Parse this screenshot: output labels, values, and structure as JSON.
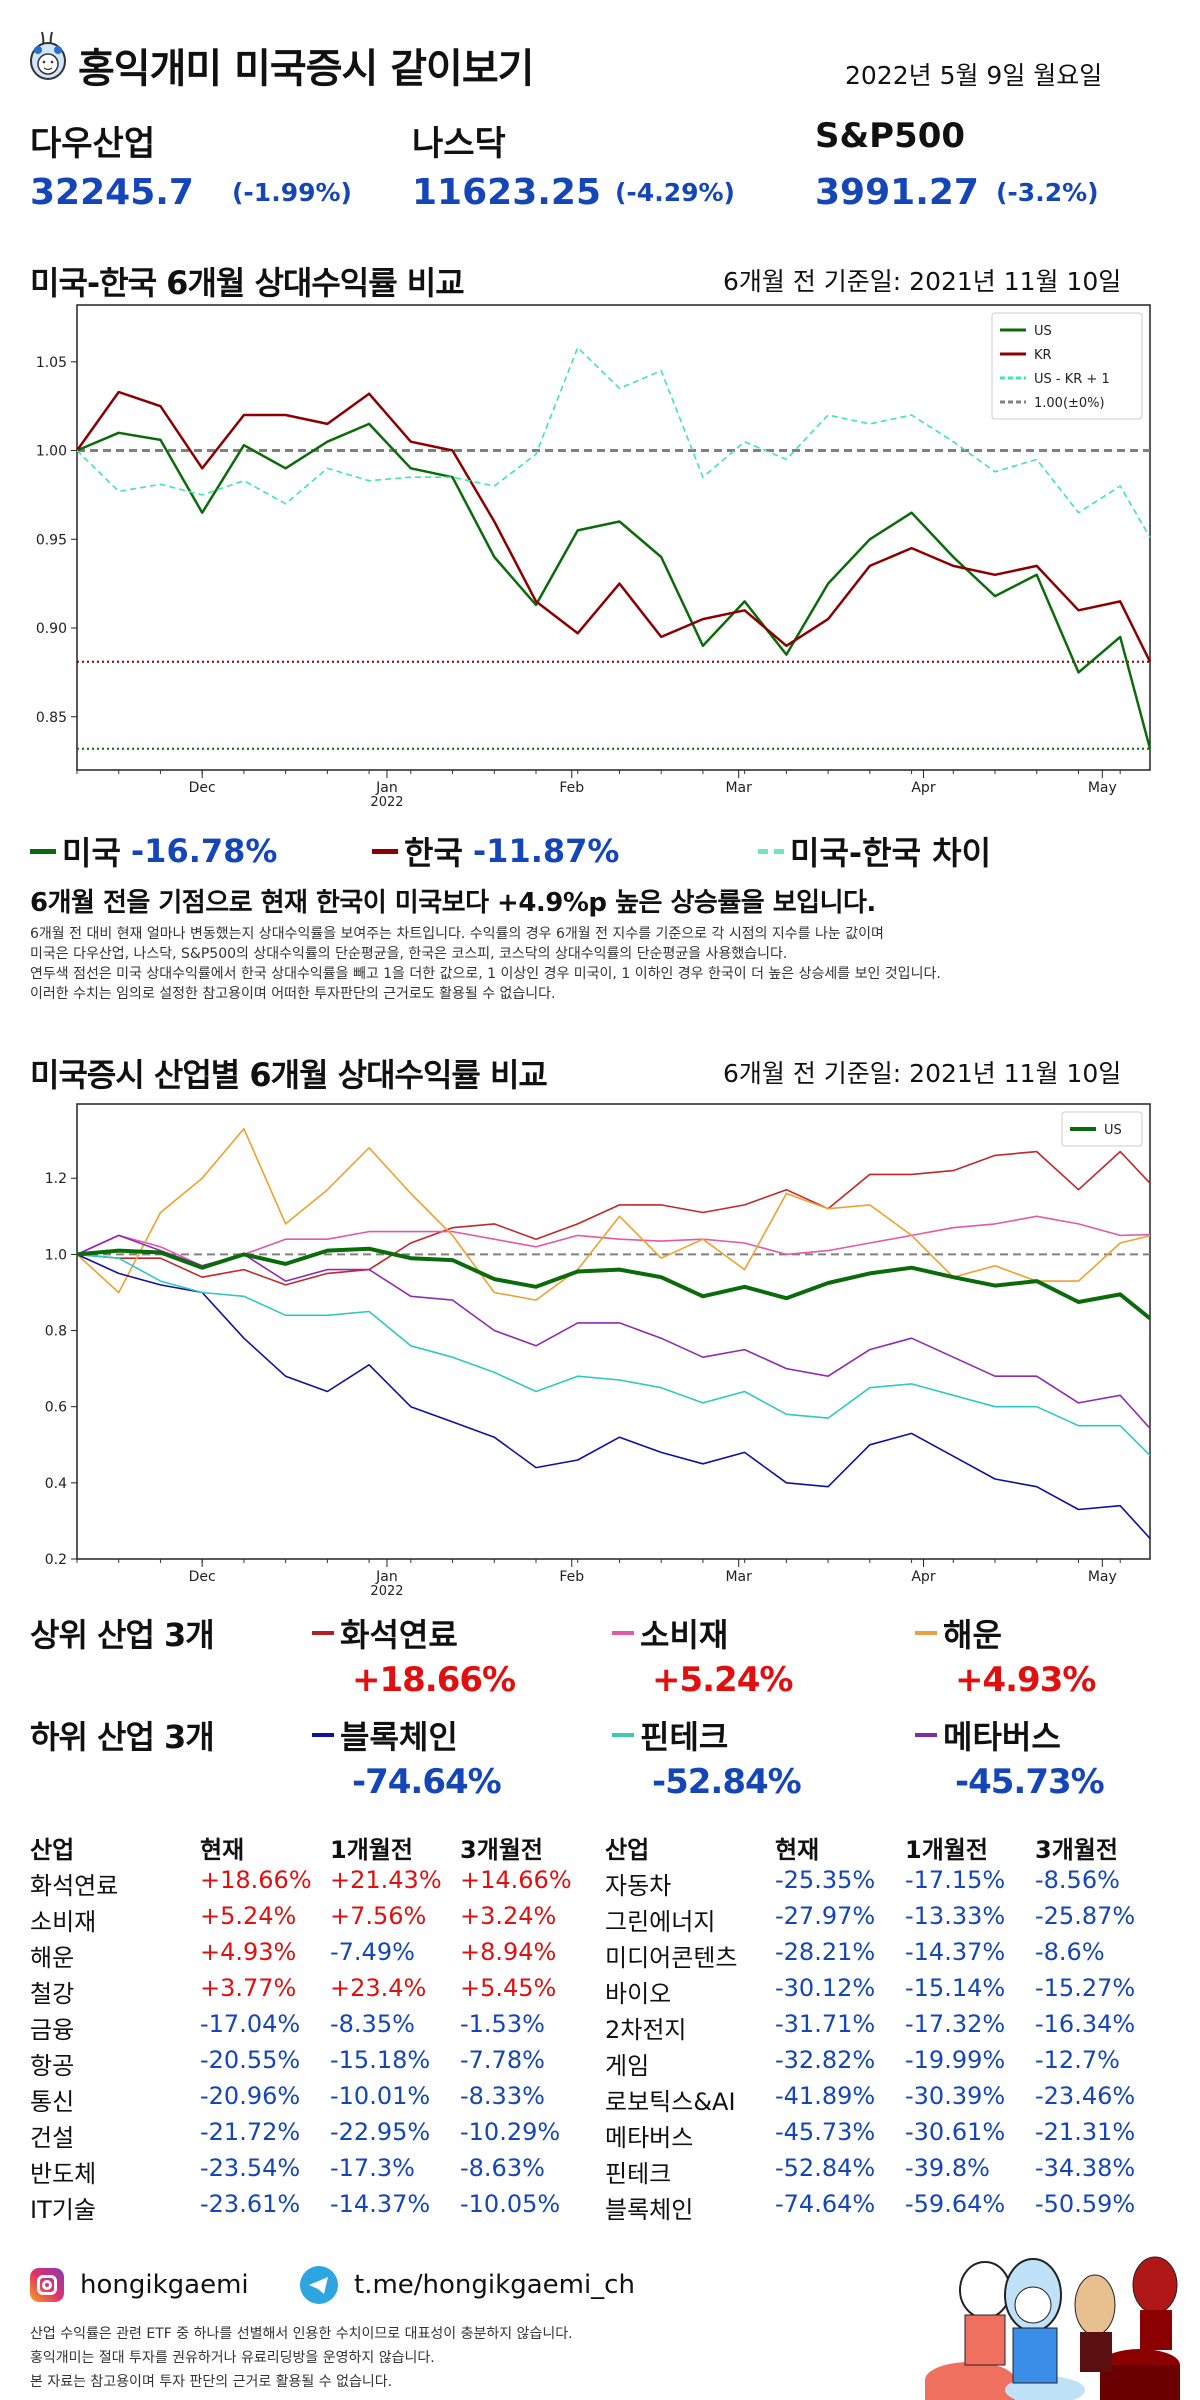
{
  "header": {
    "title": "홍익개미 미국증시 같이보기",
    "date": "2022년 5월 9일  월요일"
  },
  "indices": [
    {
      "name": "다우산업",
      "value": "32245.7",
      "change": "(-1.99%)"
    },
    {
      "name": "나스닥",
      "value": "11623.25",
      "change": "(-4.29%)"
    },
    {
      "name": "S&P500",
      "value": "3991.27",
      "change": "(-3.2%)"
    }
  ],
  "section1": {
    "title": "미국-한국 6개월 상대수익률 비교",
    "base_date": "6개월 전 기준일: 2021년 11월 10일"
  },
  "legend1": {
    "us_label": "미국",
    "us_value": "-16.78%",
    "kr_label": "한국",
    "kr_value": "-11.87%",
    "diff_label": "미국-한국 차이"
  },
  "summary": "6개월 전을 기점으로 현재 한국이 미국보다 +4.9%p 높은 상승률을 보입니다.",
  "notes": [
    "6개월 전 대비 현재 얼마나 변동했는지 상대수익률을 보여주는 차트입니다. 수익률의 경우 6개월 전 지수를 기준으로 각 시점의 지수를 나눈 값이며",
    "미국은 다우산업, 나스닥, S&P500의 상대수익률의 단순평균을, 한국은 코스피, 코스닥의 상대수익률의 단순평균을 사용했습니다.",
    "연두색 점선은 미국 상대수익률에서 한국 상대수익률을 빼고 1을 더한 값으로, 1 이상인 경우 미국이, 1 이하인 경우 한국이 더 높은 상승세를 보인 것입니다.",
    "이러한 수치는 임의로 설정한 참고용이며 어떠한 투자판단의 근거로도 활용될 수 없습니다."
  ],
  "section2": {
    "title": "미국증시 산업별 6개월 상대수익률 비교",
    "base_date": "6개월 전 기준일: 2021년 11월 10일"
  },
  "chart_data": [
    {
      "type": "line",
      "ylim": [
        0.82,
        1.082
      ],
      "yticks": [
        "0.85",
        "0.90",
        "0.95",
        "1.00",
        "1.05"
      ],
      "xticks": [
        {
          "date": "2021-12-01",
          "label": "Dec"
        },
        {
          "date": "2022-01-01",
          "label": "Jan",
          "sublabel": "2022"
        },
        {
          "date": "2022-02-01",
          "label": "Feb"
        },
        {
          "date": "2022-03-01",
          "label": "Mar"
        },
        {
          "date": "2022-04-01",
          "label": "Apr"
        },
        {
          "date": "2022-05-01",
          "label": "May"
        }
      ],
      "xrange": [
        "2021-11-10",
        "2022-05-09"
      ],
      "grid": false,
      "legend": "top-right",
      "x": [
        "2021-11-10",
        "2021-11-17",
        "2021-11-24",
        "2021-12-01",
        "2021-12-08",
        "2021-12-15",
        "2021-12-22",
        "2021-12-29",
        "2022-01-05",
        "2022-01-12",
        "2022-01-19",
        "2022-01-26",
        "2022-02-02",
        "2022-02-09",
        "2022-02-16",
        "2022-02-23",
        "2022-03-02",
        "2022-03-09",
        "2022-03-16",
        "2022-03-23",
        "2022-03-30",
        "2022-04-06",
        "2022-04-13",
        "2022-04-20",
        "2022-04-27",
        "2022-05-04",
        "2022-05-09"
      ],
      "series": [
        {
          "name": "US",
          "color": "#0b6b0b",
          "style": "solid",
          "values": [
            1.0,
            1.01,
            1.006,
            0.965,
            1.003,
            0.99,
            1.005,
            1.015,
            0.99,
            0.985,
            0.94,
            0.913,
            0.955,
            0.96,
            0.94,
            0.89,
            0.915,
            0.885,
            0.925,
            0.95,
            0.965,
            0.94,
            0.918,
            0.93,
            0.875,
            0.895,
            0.832
          ]
        },
        {
          "name": "KR",
          "color": "#8b0000",
          "style": "solid",
          "values": [
            1.0,
            1.033,
            1.025,
            0.99,
            1.02,
            1.02,
            1.015,
            1.032,
            1.005,
            1.0,
            0.96,
            0.915,
            0.897,
            0.925,
            0.895,
            0.905,
            0.91,
            0.89,
            0.905,
            0.935,
            0.945,
            0.935,
            0.93,
            0.935,
            0.91,
            0.915,
            0.881
          ]
        },
        {
          "name": "US - KR + 1",
          "color": "#3ee8a6",
          "style": "dashed",
          "values": [
            1.0,
            0.977,
            0.981,
            0.975,
            0.983,
            0.97,
            0.99,
            0.983,
            0.985,
            0.985,
            0.98,
            0.998,
            1.058,
            1.035,
            1.045,
            0.985,
            1.005,
            0.995,
            1.02,
            1.015,
            1.02,
            1.005,
            0.988,
            0.995,
            0.965,
            0.98,
            0.951
          ]
        }
      ],
      "hlines": [
        {
          "name": "1.00(±0%)",
          "value": 1.0,
          "color": "#808080",
          "style": "dashed",
          "in_legend": true
        },
        {
          "value": 0.881,
          "color": "#8b0000",
          "style": "dotted",
          "in_legend": false
        },
        {
          "value": 0.832,
          "color": "#0b6b0b",
          "style": "dotted",
          "in_legend": false
        }
      ]
    },
    {
      "type": "line",
      "ylim": [
        0.2,
        1.395
      ],
      "yticks": [
        "0.2",
        "0.4",
        "0.6",
        "0.8",
        "1.0",
        "1.2"
      ],
      "xticks": [
        {
          "date": "2021-12-01",
          "label": "Dec"
        },
        {
          "date": "2022-01-01",
          "label": "Jan",
          "sublabel": "2022"
        },
        {
          "date": "2022-02-01",
          "label": "Feb"
        },
        {
          "date": "2022-03-01",
          "label": "Mar"
        },
        {
          "date": "2022-04-01",
          "label": "Apr"
        },
        {
          "date": "2022-05-01",
          "label": "May"
        }
      ],
      "xrange": [
        "2021-11-10",
        "2022-05-09"
      ],
      "grid": false,
      "legend": "top-right",
      "x": [
        "2021-11-10",
        "2021-11-17",
        "2021-11-24",
        "2021-12-01",
        "2021-12-08",
        "2021-12-15",
        "2021-12-22",
        "2021-12-29",
        "2022-01-05",
        "2022-01-12",
        "2022-01-19",
        "2022-01-26",
        "2022-02-02",
        "2022-02-09",
        "2022-02-16",
        "2022-02-23",
        "2022-03-02",
        "2022-03-09",
        "2022-03-16",
        "2022-03-23",
        "2022-03-30",
        "2022-04-06",
        "2022-04-13",
        "2022-04-20",
        "2022-04-27",
        "2022-05-04",
        "2022-05-09"
      ],
      "series": [
        {
          "name": "화석연료",
          "color": "#c0282a",
          "width": 1.6,
          "values": [
            1.0,
            0.99,
            0.99,
            0.94,
            0.96,
            0.92,
            0.95,
            0.96,
            1.03,
            1.07,
            1.08,
            1.04,
            1.08,
            1.13,
            1.13,
            1.11,
            1.13,
            1.17,
            1.12,
            1.21,
            1.21,
            1.22,
            1.26,
            1.27,
            1.17,
            1.27,
            1.187
          ]
        },
        {
          "name": "소비재",
          "color": "#e05aa8",
          "width": 1.6,
          "values": [
            1.0,
            1.05,
            1.02,
            0.97,
            1.0,
            1.04,
            1.04,
            1.06,
            1.06,
            1.06,
            1.04,
            1.02,
            1.05,
            1.04,
            1.035,
            1.04,
            1.03,
            1.0,
            1.01,
            1.03,
            1.05,
            1.07,
            1.08,
            1.1,
            1.08,
            1.05,
            1.052
          ]
        },
        {
          "name": "해운",
          "color": "#f0a030",
          "width": 1.6,
          "values": [
            1.0,
            0.9,
            1.11,
            1.2,
            1.33,
            1.08,
            1.17,
            1.28,
            1.16,
            1.05,
            0.9,
            0.88,
            0.96,
            1.1,
            0.99,
            1.04,
            0.96,
            1.16,
            1.12,
            1.13,
            1.05,
            0.94,
            0.97,
            0.93,
            0.93,
            1.03,
            1.049
          ]
        },
        {
          "name": "블록체인",
          "color": "#1010a0",
          "width": 1.6,
          "values": [
            1.0,
            0.95,
            0.92,
            0.9,
            0.78,
            0.68,
            0.64,
            0.71,
            0.6,
            0.56,
            0.52,
            0.44,
            0.46,
            0.52,
            0.48,
            0.45,
            0.48,
            0.4,
            0.39,
            0.5,
            0.53,
            0.47,
            0.41,
            0.39,
            0.33,
            0.34,
            0.254
          ]
        },
        {
          "name": "핀테크",
          "color": "#30c8c0",
          "width": 1.6,
          "values": [
            1.0,
            0.99,
            0.93,
            0.9,
            0.89,
            0.84,
            0.84,
            0.85,
            0.76,
            0.73,
            0.69,
            0.64,
            0.68,
            0.67,
            0.65,
            0.61,
            0.64,
            0.58,
            0.57,
            0.65,
            0.66,
            0.63,
            0.6,
            0.6,
            0.55,
            0.55,
            0.472
          ]
        },
        {
          "name": "메타버스",
          "color": "#8e2bb0",
          "width": 1.6,
          "values": [
            1.0,
            1.05,
            1.01,
            0.97,
            1.0,
            0.93,
            0.96,
            0.96,
            0.89,
            0.88,
            0.8,
            0.76,
            0.82,
            0.82,
            0.78,
            0.73,
            0.75,
            0.7,
            0.68,
            0.75,
            0.78,
            0.73,
            0.68,
            0.68,
            0.61,
            0.63,
            0.543
          ]
        },
        {
          "name": "US",
          "color": "#0b6b0b",
          "width": 4,
          "in_legend": true,
          "values": [
            1.0,
            1.01,
            1.005,
            0.965,
            1.0,
            0.975,
            1.01,
            1.015,
            0.99,
            0.985,
            0.935,
            0.915,
            0.955,
            0.96,
            0.94,
            0.89,
            0.915,
            0.885,
            0.925,
            0.95,
            0.965,
            0.94,
            0.918,
            0.93,
            0.875,
            0.895,
            0.832
          ]
        }
      ],
      "hlines": [
        {
          "value": 1.0,
          "color": "#808080",
          "style": "dashed",
          "in_legend": false
        }
      ]
    }
  ],
  "top3": {
    "label": "상위 산업 3개",
    "items": [
      {
        "name": "화석연료",
        "value": "+18.66%",
        "color": "#b22222"
      },
      {
        "name": "소비재",
        "value": "+5.24%",
        "color": "#e05aa8"
      },
      {
        "name": "해운",
        "value": "+4.93%",
        "color": "#e8a040"
      }
    ]
  },
  "bottom3": {
    "label": "하위 산업 3개",
    "items": [
      {
        "name": "블록체인",
        "value": "-74.64%",
        "color": "#1010a0"
      },
      {
        "name": "핀테크",
        "value": "-52.84%",
        "color": "#40c8b0"
      },
      {
        "name": "메타버스",
        "value": "-45.73%",
        "color": "#7b2aa8"
      }
    ]
  },
  "table": {
    "headers": [
      "산업",
      "현재",
      "1개월전",
      "3개월전"
    ],
    "left": [
      [
        "화석연료",
        "+18.66%",
        "+21.43%",
        "+14.66%"
      ],
      [
        "소비재",
        "+5.24%",
        "+7.56%",
        "+3.24%"
      ],
      [
        "해운",
        "+4.93%",
        "-7.49%",
        "+8.94%"
      ],
      [
        "철강",
        "+3.77%",
        "+23.4%",
        "+5.45%"
      ],
      [
        "금융",
        "-17.04%",
        "-8.35%",
        "-1.53%"
      ],
      [
        "항공",
        "-20.55%",
        "-15.18%",
        "-7.78%"
      ],
      [
        "통신",
        "-20.96%",
        "-10.01%",
        "-8.33%"
      ],
      [
        "건설",
        "-21.72%",
        "-22.95%",
        "-10.29%"
      ],
      [
        "반도체",
        "-23.54%",
        "-17.3%",
        "-8.63%"
      ],
      [
        "IT기술",
        "-23.61%",
        "-14.37%",
        "-10.05%"
      ]
    ],
    "right": [
      [
        "자동차",
        "-25.35%",
        "-17.15%",
        "-8.56%"
      ],
      [
        "그린에너지",
        "-27.97%",
        "-13.33%",
        "-25.87%"
      ],
      [
        "미디어콘텐츠",
        "-28.21%",
        "-14.37%",
        "-8.6%"
      ],
      [
        "바이오",
        "-30.12%",
        "-15.14%",
        "-15.27%"
      ],
      [
        "2차전지",
        "-31.71%",
        "-17.32%",
        "-16.34%"
      ],
      [
        "게임",
        "-32.82%",
        "-19.99%",
        "-12.7%"
      ],
      [
        "로보틱스&AI",
        "-41.89%",
        "-30.39%",
        "-23.46%"
      ],
      [
        "메타버스",
        "-45.73%",
        "-30.61%",
        "-21.31%"
      ],
      [
        "핀테크",
        "-52.84%",
        "-39.8%",
        "-34.38%"
      ],
      [
        "블록체인",
        "-74.64%",
        "-59.64%",
        "-50.59%"
      ]
    ]
  },
  "footer": {
    "instagram": "hongikgaemi",
    "telegram": "t.me/hongikgaemi_ch",
    "notes": [
      "산업 수익률은 관련 ETF 중 하나를 선별해서 인용한 수치이므로 대표성이 충분하지 않습니다.",
      "홍익개미는 절대 투자를 권유하거나 유료리딩방을 운영하지 않습니다.",
      "본 자료는 참고용이며 투자 판단의 근거로 활용될 수 없습니다."
    ]
  },
  "colors": {
    "positive": "#e01010",
    "negative": "#1446b8"
  }
}
